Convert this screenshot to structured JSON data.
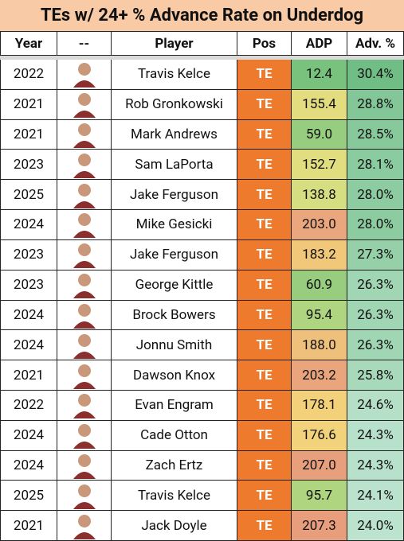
{
  "title": "TEs w/ 24+ % Advance Rate on Underdog",
  "columns": [
    "Year",
    "--",
    "Player",
    "Pos",
    "ADP",
    "Adv. %"
  ],
  "rows": [
    {
      "year": "2022",
      "player": "Travis Kelce",
      "pos": "TE",
      "adp": "12.4",
      "adv": "30.4%"
    },
    {
      "year": "2021",
      "player": "Rob Gronkowski",
      "pos": "TE",
      "adp": "155.4",
      "adv": "28.8%"
    },
    {
      "year": "2021",
      "player": "Mark Andrews",
      "pos": "TE",
      "adp": "59.0",
      "adv": "28.5%"
    },
    {
      "year": "2023",
      "player": "Sam LaPorta",
      "pos": "TE",
      "adp": "152.7",
      "adv": "28.1%"
    },
    {
      "year": "2025",
      "player": "Jake Ferguson",
      "pos": "TE",
      "adp": "138.8",
      "adv": "28.0%"
    },
    {
      "year": "2024",
      "player": "Mike Gesicki",
      "pos": "TE",
      "adp": "203.0",
      "adv": "28.0%"
    },
    {
      "year": "2023",
      "player": "Jake Ferguson",
      "pos": "TE",
      "adp": "183.2",
      "adv": "27.3%"
    },
    {
      "year": "2023",
      "player": "George Kittle",
      "pos": "TE",
      "adp": "60.9",
      "adv": "26.3%"
    },
    {
      "year": "2024",
      "player": "Brock Bowers",
      "pos": "TE",
      "adp": "95.4",
      "adv": "26.3%"
    },
    {
      "year": "2024",
      "player": "Jonnu Smith",
      "pos": "TE",
      "adp": "188.0",
      "adv": "26.3%"
    },
    {
      "year": "2021",
      "player": "Dawson Knox",
      "pos": "TE",
      "adp": "203.2",
      "adv": "25.8%"
    },
    {
      "year": "2022",
      "player": "Evan Engram",
      "pos": "TE",
      "adp": "178.1",
      "adv": "24.6%"
    },
    {
      "year": "2024",
      "player": "Cade Otton",
      "pos": "TE",
      "adp": "176.6",
      "adv": "24.3%"
    },
    {
      "year": "2024",
      "player": "Zach Ertz",
      "pos": "TE",
      "adp": "207.0",
      "adv": "24.3%"
    },
    {
      "year": "2025",
      "player": "Travis Kelce",
      "pos": "TE",
      "adp": "95.7",
      "adv": "24.1%"
    },
    {
      "year": "2021",
      "player": "Jack Doyle",
      "pos": "TE",
      "adp": "207.3",
      "adv": "24.0%"
    }
  ]
}
